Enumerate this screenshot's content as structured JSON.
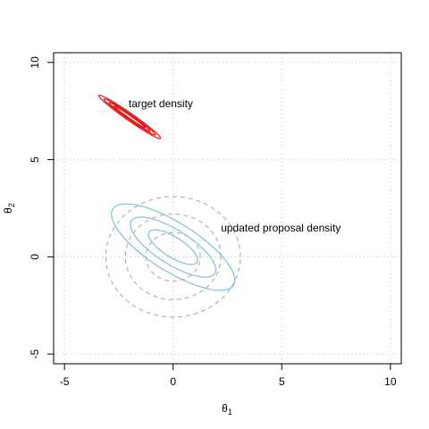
{
  "chart_data": {
    "type": "contour",
    "title": "",
    "xlabel_base": "θ",
    "xlabel_sub": "1",
    "ylabel_base": "θ",
    "ylabel_sub": "2",
    "xlim": [
      -5.5,
      10.5
    ],
    "ylim": [
      -5.5,
      10.5
    ],
    "xticks": [
      -5,
      0,
      5,
      10
    ],
    "yticks": [
      -5,
      0,
      5,
      10
    ],
    "xtick_labels": [
      "-5",
      "0",
      "5",
      "10"
    ],
    "ytick_labels": [
      "-5",
      "0",
      "5",
      "10"
    ],
    "grid": true,
    "series": [
      {
        "color": "#e41a1c",
        "style": "solid",
        "center": [
          -2,
          7.2
        ],
        "contours": [
          {
            "rx": 1.8,
            "ry": 0.18,
            "angle_deg": -38
          },
          {
            "rx": 1.5,
            "ry": 0.13,
            "angle_deg": -38
          },
          {
            "rx": 1.2,
            "ry": 0.09,
            "angle_deg": -38
          },
          {
            "rx": 0.9,
            "ry": 0.06,
            "angle_deg": -38
          }
        ]
      },
      {
        "color": "#7ec0dc",
        "style": "solid",
        "center": [
          0,
          0.5
        ],
        "contours": [
          {
            "rx": 3.4,
            "ry": 1.2,
            "angle_deg": -36
          },
          {
            "rx": 2.35,
            "ry": 0.85,
            "angle_deg": -36
          },
          {
            "rx": 1.35,
            "ry": 0.5,
            "angle_deg": -36
          }
        ]
      },
      {
        "color": "#b3b3b3",
        "style": "dashed",
        "center": [
          0,
          0
        ],
        "contours": [
          {
            "rx": 3.1,
            "ry": 3.1,
            "angle_deg": 0
          },
          {
            "rx": 2.2,
            "ry": 2.2,
            "angle_deg": 0
          },
          {
            "rx": 1.25,
            "ry": 1.25,
            "angle_deg": 0
          }
        ]
      }
    ],
    "annotations": [
      {
        "text": "target density",
        "x": -2.05,
        "y": 7.85
      },
      {
        "text": "updated proposal density",
        "x": 2.2,
        "y": 1.45
      }
    ]
  }
}
